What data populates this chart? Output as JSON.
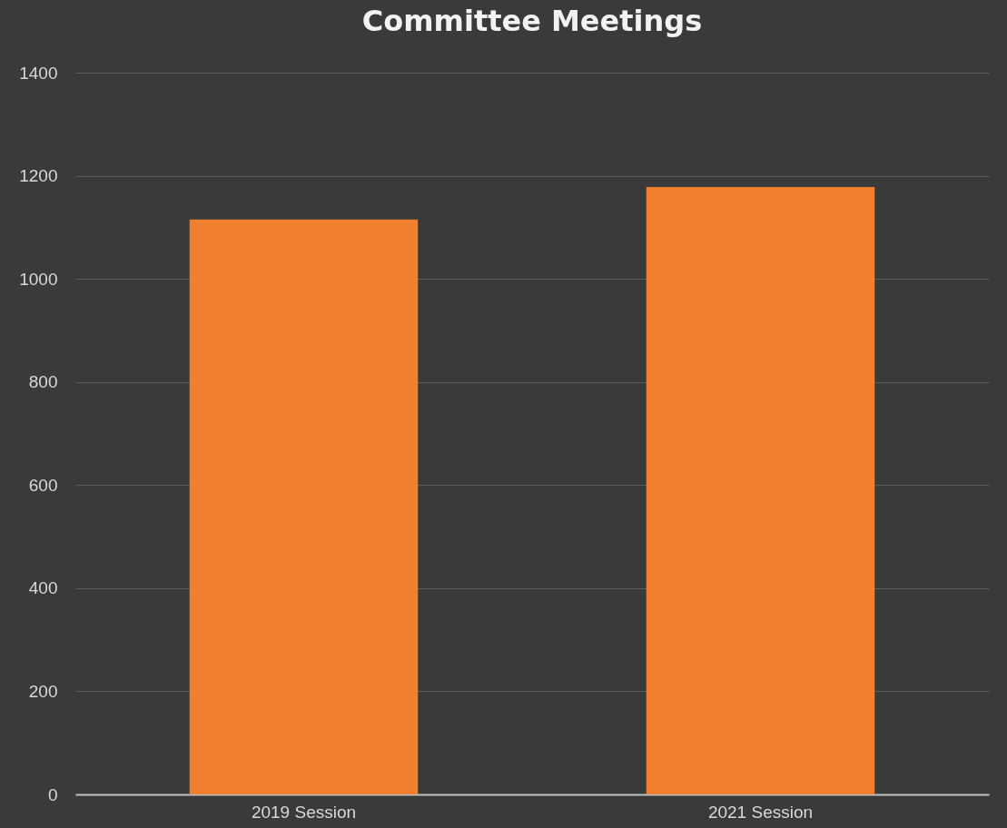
{
  "chart_data": {
    "type": "bar",
    "title": "Committee Meetings",
    "categories": [
      "2019 Session",
      "2021 Session"
    ],
    "values": [
      1115,
      1178
    ],
    "color": "#f07f2e",
    "ylim": [
      0,
      1400
    ],
    "yticks": [
      0,
      200,
      400,
      600,
      800,
      1000,
      1200,
      1400
    ],
    "grid": "y"
  }
}
